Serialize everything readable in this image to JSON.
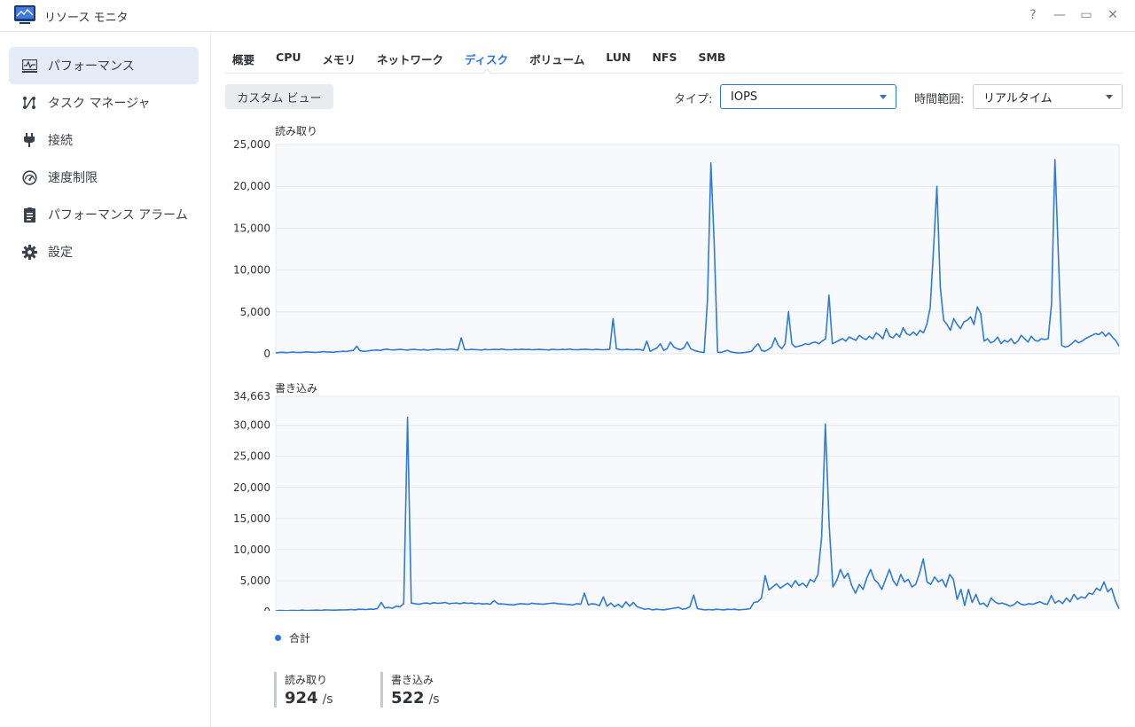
{
  "window": {
    "title": "リソース モニタ",
    "controls": [
      "?",
      "—",
      "▭",
      "✕"
    ]
  },
  "sidebar": {
    "items": [
      {
        "label": "パフォーマンス",
        "icon": "performance-chart-icon",
        "active": true
      },
      {
        "label": "タスク マネージャ",
        "icon": "task-manager-icon",
        "active": false
      },
      {
        "label": "接続",
        "icon": "plug-icon",
        "active": false
      },
      {
        "label": "速度制限",
        "icon": "speedometer-icon",
        "active": false
      },
      {
        "label": "パフォーマンス アラーム",
        "icon": "clipboard-icon",
        "active": false
      },
      {
        "label": "設定",
        "icon": "gear-icon",
        "active": false
      }
    ]
  },
  "tabs": [
    {
      "label": "概要"
    },
    {
      "label": "CPU"
    },
    {
      "label": "メモリ"
    },
    {
      "label": "ネットワーク"
    },
    {
      "label": "ディスク",
      "active": true
    },
    {
      "label": "ボリューム"
    },
    {
      "label": "LUN"
    },
    {
      "label": "NFS"
    },
    {
      "label": "SMB"
    }
  ],
  "toolbar": {
    "custom_view": "カスタム ビュー",
    "type_label": "タイプ:",
    "type_value": "IOPS",
    "range_label": "時間範囲:",
    "range_value": "リアルタイム"
  },
  "colors": {
    "accent": "#2c75d8",
    "line": "#2f7bd8",
    "grid": "#e6e9ee",
    "plot_bg": "#f7f9fc"
  },
  "legend": {
    "label": "合計"
  },
  "stats": {
    "read": {
      "label": "読み取り",
      "value": "924",
      "unit": "/s"
    },
    "write": {
      "label": "書き込み",
      "value": "522",
      "unit": "/s"
    }
  },
  "chart_data": [
    {
      "type": "line",
      "title": "読み取り",
      "ylim": [
        0,
        25000
      ],
      "yticks": [
        "25,000",
        "20,000",
        "15,000",
        "10,000",
        "5,000",
        "0"
      ],
      "series": [
        {
          "name": "合計",
          "values": [
            120,
            150,
            180,
            140,
            160,
            200,
            170,
            150,
            180,
            220,
            200,
            180,
            160,
            200,
            250,
            220,
            200,
            180,
            240,
            260,
            300,
            280,
            350,
            400,
            900,
            350,
            300,
            320,
            380,
            420,
            450,
            400,
            500,
            550,
            480,
            460,
            500,
            520,
            480,
            450,
            500,
            520,
            480,
            460,
            500,
            420,
            480,
            520,
            550,
            500,
            480,
            520,
            560,
            500,
            450,
            1900,
            500,
            480,
            520,
            500,
            480,
            450,
            520,
            480,
            500,
            520,
            500,
            560,
            500,
            480,
            480,
            520,
            500,
            540,
            500,
            520,
            480,
            500,
            520,
            500,
            480,
            460,
            520,
            500,
            480,
            520,
            500,
            560,
            500,
            480,
            500,
            520,
            540,
            500,
            480,
            520,
            500,
            480,
            500,
            520,
            4200,
            600,
            500,
            480,
            520,
            500,
            480,
            520,
            500,
            400,
            1500,
            300,
            500,
            700,
            1200,
            400,
            600,
            1400,
            800,
            600,
            500,
            700,
            1400,
            600,
            400,
            300,
            200,
            150,
            6500,
            22800,
            13000,
            200,
            150,
            300,
            400,
            200,
            150,
            100,
            120,
            150,
            200,
            300,
            800,
            1200,
            400,
            300,
            500,
            800,
            1900,
            1000,
            600,
            1200,
            5000,
            1200,
            800,
            900,
            1000,
            1200,
            1100,
            1300,
            1400,
            1200,
            1500,
            1800,
            7000,
            1200,
            1400,
            1600,
            1800,
            1500,
            2000,
            1800,
            1600,
            2200,
            1900,
            1700,
            2100,
            1800,
            2500,
            2200,
            1800,
            3000,
            2100,
            1900,
            2400,
            2000,
            3100,
            2400,
            2200,
            2600,
            2200,
            2800,
            2500,
            3500,
            5500,
            12500,
            20000,
            8000,
            4000,
            3500,
            2800,
            4200,
            3500,
            3000,
            3800,
            4000,
            4400,
            3500,
            5600,
            4800,
            1500,
            1800,
            1300,
            1500,
            2000,
            1200,
            1600,
            1400,
            1800,
            1200,
            1500,
            2200,
            1800,
            1400,
            2100,
            1600,
            1500,
            1800,
            1700,
            1800,
            6000,
            23200,
            12000,
            1000,
            800,
            900,
            1200,
            1600,
            1300,
            1500,
            1800,
            2000,
            2200,
            2400,
            2300,
            2600,
            2100,
            2500,
            2000,
            1600,
            900
          ]
        }
      ]
    },
    {
      "type": "line",
      "title": "書き込み",
      "ylim": [
        0,
        34663
      ],
      "yticks": [
        "34,663",
        "30,000",
        "25,000",
        "20,000",
        "15,000",
        "10,000",
        "5,000",
        "0"
      ],
      "series": [
        {
          "name": "合計",
          "values": [
            150,
            200,
            180,
            160,
            220,
            200,
            180,
            250,
            220,
            200,
            240,
            260,
            220,
            300,
            280,
            260,
            250,
            300,
            280,
            320,
            350,
            300,
            400,
            380,
            350,
            420,
            400,
            500,
            1500,
            600,
            700,
            550,
            900,
            800,
            1300,
            31300,
            1400,
            1300,
            1200,
            1350,
            1400,
            1300,
            1450,
            1350,
            1400,
            1500,
            1300,
            1350,
            1400,
            1300,
            1450,
            1350,
            1400,
            1300,
            1350,
            1250,
            1300,
            1200,
            1800,
            1300,
            1250,
            1200,
            1150,
            1100,
            1200,
            1300,
            1250,
            1200,
            1350,
            1300,
            1250,
            1200,
            1300,
            1350,
            1400,
            1300,
            1250,
            1200,
            1150,
            1100,
            1300,
            1200,
            3000,
            1100,
            1300,
            1200,
            1000,
            2400,
            900,
            1400,
            800,
            1200,
            700,
            1600,
            900,
            1500,
            800,
            600,
            400,
            500,
            300,
            400,
            350,
            300,
            400,
            500,
            600,
            700,
            400,
            500,
            800,
            2700,
            500,
            400,
            300,
            350,
            300,
            400,
            350,
            300,
            400,
            350,
            400,
            300,
            350,
            400,
            500,
            1500,
            1600,
            2200,
            5800,
            3500,
            4000,
            4500,
            3800,
            4200,
            4600,
            4000,
            5000,
            4200,
            4600,
            4000,
            5200,
            4800,
            6000,
            12000,
            30200,
            14000,
            4000,
            5000,
            6800,
            5400,
            6200,
            4200,
            3000,
            4400,
            3600,
            5400,
            6800,
            5200,
            4600,
            3600,
            5200,
            6800,
            5000,
            4200,
            6000,
            4800,
            5200,
            4000,
            4400,
            6200,
            8500,
            4800,
            4400,
            5600,
            4800,
            5200,
            4000,
            6000,
            5200,
            2000,
            3600,
            1000,
            3600,
            1500,
            2800,
            1200,
            1400,
            800,
            2200,
            1600,
            1300,
            1400,
            1200,
            900,
            1100,
            1600,
            1200,
            1100,
            1300,
            1200,
            1400,
            1600,
            1300,
            1200,
            2600,
            1400,
            1800,
            1300,
            2200,
            1600,
            2800,
            2000,
            2400,
            2200,
            3000,
            2800,
            3800,
            3400,
            4800,
            3200,
            3800,
            1800,
            500
          ]
        }
      ]
    }
  ]
}
